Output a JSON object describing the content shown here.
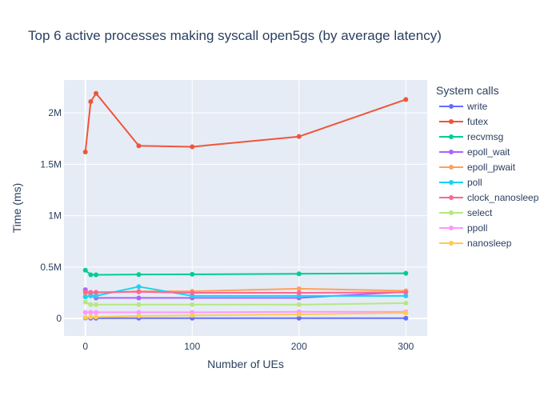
{
  "chart_data": {
    "type": "line",
    "title": "Top 6 active processes making syscall open5gs (by average latency)",
    "xlabel": "Number of UEs",
    "ylabel": "Time (ms)",
    "legend_title": "System calls",
    "legend_position": "right",
    "grid": true,
    "xlim": [
      -20,
      320
    ],
    "ylim": [
      -170000,
      2320000
    ],
    "x_ticks": [
      0,
      100,
      200,
      300
    ],
    "x_tick_labels": [
      "0",
      "100",
      "200",
      "300"
    ],
    "y_ticks": [
      0,
      500000,
      1000000,
      1500000,
      2000000
    ],
    "y_tick_labels": [
      "0",
      "0.5M",
      "1M",
      "1.5M",
      "2M"
    ],
    "x": [
      0,
      5,
      10,
      50,
      100,
      200,
      300
    ],
    "series": [
      {
        "name": "write",
        "color": "#636efa",
        "values": [
          5000,
          3000,
          3000,
          3000,
          3000,
          3000,
          3000
        ]
      },
      {
        "name": "futex",
        "color": "#ef553b",
        "values": [
          1620000,
          2110000,
          2190000,
          1680000,
          1670000,
          1770000,
          2130000
        ]
      },
      {
        "name": "recvmsg",
        "color": "#00cc96",
        "values": [
          470000,
          425000,
          425000,
          428000,
          430000,
          435000,
          440000
        ]
      },
      {
        "name": "epoll_wait",
        "color": "#ab63fa",
        "values": [
          280000,
          230000,
          200000,
          200000,
          200000,
          200000,
          260000
        ]
      },
      {
        "name": "epoll_pwait",
        "color": "#ffa15a",
        "values": [
          240000,
          250000,
          250000,
          265000,
          265000,
          290000,
          270000
        ]
      },
      {
        "name": "poll",
        "color": "#19d3f3",
        "values": [
          210000,
          220000,
          220000,
          310000,
          220000,
          220000,
          220000
        ]
      },
      {
        "name": "clock_nanosleep",
        "color": "#ff6692",
        "values": [
          260000,
          255000,
          255000,
          260000,
          250000,
          250000,
          255000
        ]
      },
      {
        "name": "select",
        "color": "#b6e880",
        "values": [
          160000,
          135000,
          135000,
          135000,
          135000,
          135000,
          150000
        ]
      },
      {
        "name": "ppoll",
        "color": "#ff97ff",
        "values": [
          60000,
          60000,
          60000,
          60000,
          60000,
          65000,
          65000
        ]
      },
      {
        "name": "nanosleep",
        "color": "#fecb52",
        "values": [
          10000,
          15000,
          15000,
          25000,
          30000,
          40000,
          55000
        ]
      }
    ]
  }
}
